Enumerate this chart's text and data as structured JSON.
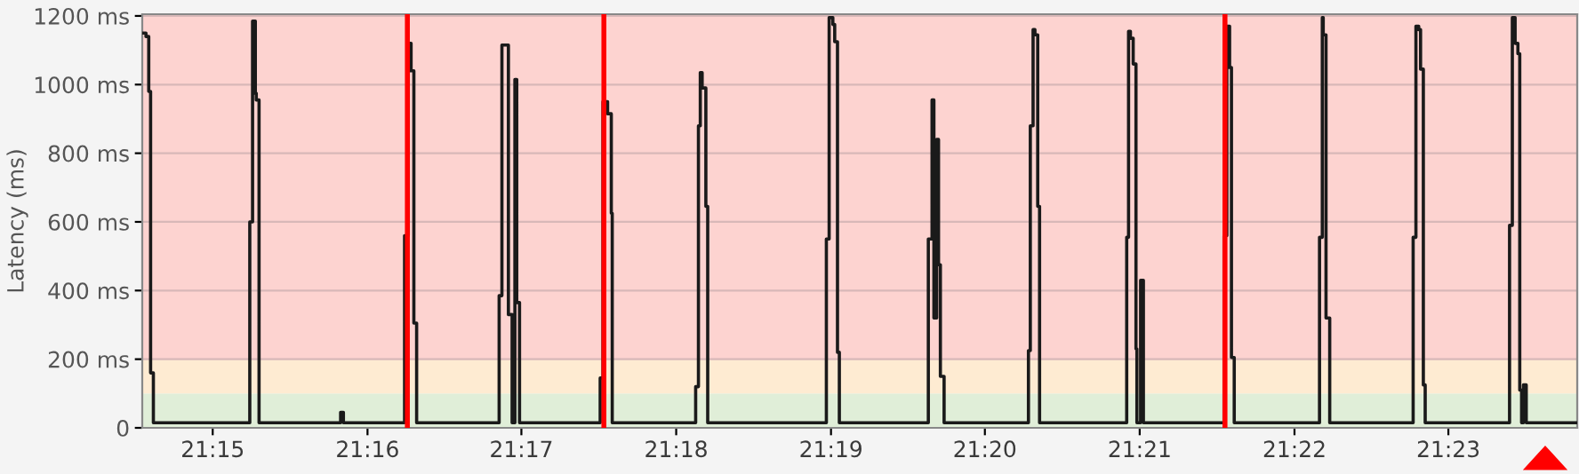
{
  "chart_data": {
    "type": "step",
    "ylabel": "Latency (ms)",
    "x": [
      21.2425,
      21.2428,
      21.2431,
      21.2433,
      21.2436,
      21.254,
      21.2543,
      21.2546,
      21.2547,
      21.255,
      21.2638,
      21.2641,
      21.2707,
      21.2711,
      21.2714,
      21.2717,
      21.272,
      21.2809,
      21.2812,
      21.2819,
      21.2823,
      21.2826,
      21.2828,
      21.2831,
      21.2918,
      21.2921,
      21.2926,
      21.293,
      21.2931,
      21.3021,
      21.3024,
      21.3026,
      21.3028,
      21.3032,
      21.3034,
      21.3162,
      21.3165,
      21.3169,
      21.3171,
      21.3174,
      21.3176,
      21.3272,
      21.3276,
      21.3278,
      21.3281,
      21.3283,
      21.3285,
      21.3289,
      21.338,
      21.3382,
      21.3385,
      21.3387,
      21.339,
      21.3392,
      21.3486,
      21.3488,
      21.349,
      21.3493,
      21.3496,
      21.3497,
      21.3501,
      21.3504,
      21.3591,
      21.3594,
      21.3597,
      21.3599,
      21.3602,
      21.3694,
      21.3697,
      21.3698,
      21.3701,
      21.3705,
      21.3795,
      21.3798,
      21.3801,
      21.3803,
      21.3806,
      21.3808,
      21.3899,
      21.3902,
      21.3905,
      21.3908,
      21.391,
      21.3912,
      21.3914,
      21.3917,
      21.3972
    ],
    "series": [
      {
        "color": "#1a1a1a",
        "values": [
          1150,
          1140,
          980,
          160,
          15,
          600,
          1185,
          975,
          955,
          15,
          45,
          15,
          560,
          1120,
          1040,
          305,
          15,
          385,
          1115,
          330,
          15,
          1015,
          365,
          15,
          145,
          950,
          915,
          625,
          15,
          120,
          880,
          1035,
          990,
          645,
          15,
          550,
          1195,
          1175,
          1125,
          220,
          15,
          550,
          955,
          320,
          840,
          475,
          150,
          15,
          225,
          880,
          1160,
          1145,
          645,
          15,
          555,
          1155,
          1135,
          1060,
          230,
          15,
          430,
          15,
          560,
          1170,
          1050,
          205,
          15,
          555,
          1195,
          1145,
          320,
          15,
          555,
          1170,
          1160,
          1045,
          125,
          15,
          590,
          1195,
          1120,
          1090,
          110,
          15,
          125,
          15,
          15
        ]
      }
    ],
    "xlim": [
      21.2424,
      21.3972
    ],
    "ylim": [
      0,
      1205
    ],
    "xticks": [
      {
        "value": 21.25,
        "label": "21:15"
      },
      {
        "value": 21.2667,
        "label": "21:16"
      },
      {
        "value": 21.2833,
        "label": "21:17"
      },
      {
        "value": 21.3,
        "label": "21:18"
      },
      {
        "value": 21.3167,
        "label": "21:19"
      },
      {
        "value": 21.3333,
        "label": "21:20"
      },
      {
        "value": 21.35,
        "label": "21:21"
      },
      {
        "value": 21.3667,
        "label": "21:22"
      },
      {
        "value": 21.3833,
        "label": "21:23"
      }
    ],
    "yticks": [
      {
        "value": 0,
        "label": "0"
      },
      {
        "value": 200,
        "label": "200 ms"
      },
      {
        "value": 400,
        "label": "400 ms"
      },
      {
        "value": 600,
        "label": "600 ms"
      },
      {
        "value": 800,
        "label": "800 ms"
      },
      {
        "value": 1000,
        "label": "1000 ms"
      },
      {
        "value": 1200,
        "label": "1200 ms"
      }
    ],
    "grid": "y",
    "legend": false,
    "bands": [
      {
        "axis": "y",
        "from": 0,
        "to": 100,
        "color": "#e0eed8"
      },
      {
        "axis": "y",
        "from": 100,
        "to": 200,
        "color": "#feebd2"
      },
      {
        "axis": "y",
        "from": 200,
        "to": 1205,
        "color": "#fdd3d0"
      }
    ],
    "ref_lines": [
      {
        "axis": "x",
        "value": 21.271,
        "color": "#ff0000"
      },
      {
        "axis": "x",
        "value": 21.2922,
        "color": "#ff0000"
      },
      {
        "axis": "x",
        "value": 21.3592,
        "color": "#ff0000"
      }
    ]
  }
}
